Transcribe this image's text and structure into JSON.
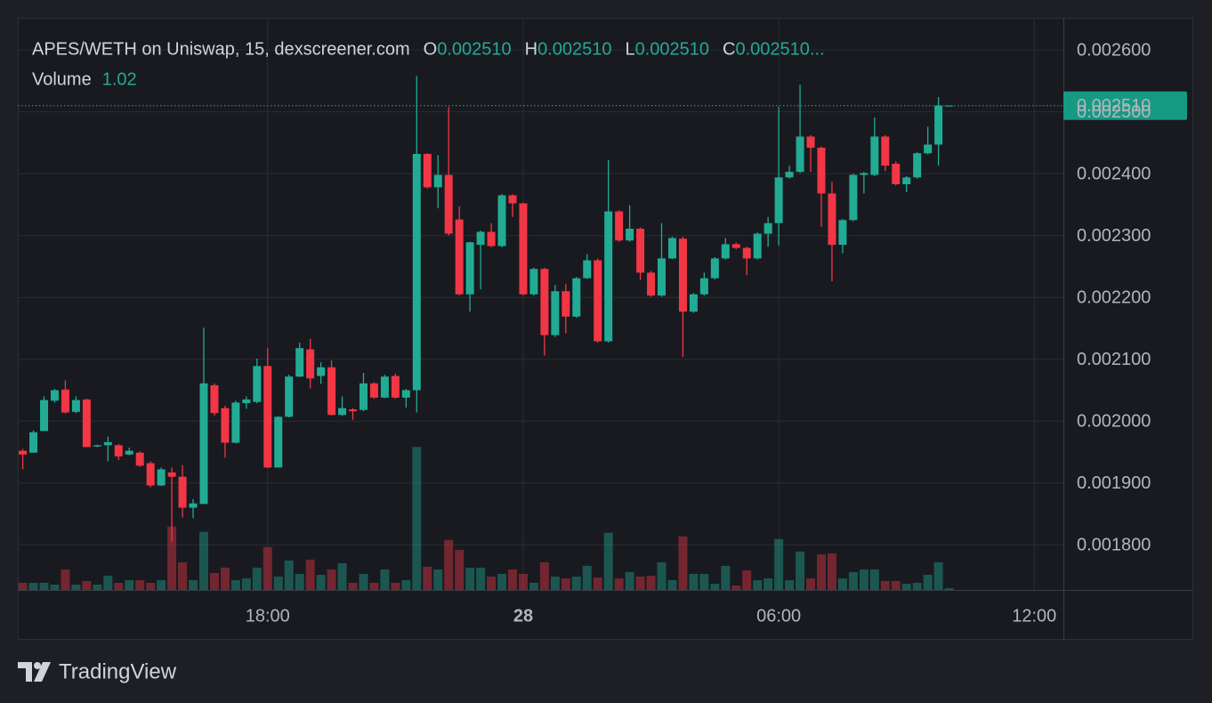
{
  "chart_data": {
    "type": "candlestick",
    "title": "APES/WETH on Uniswap, 15, dexscreener.com",
    "legend_values": [
      {
        "label": "O",
        "value": "0.002510"
      },
      {
        "label": "H",
        "value": "0.002510"
      },
      {
        "label": "L",
        "value": "0.002510"
      },
      {
        "label": "C",
        "value": "0.002510..."
      }
    ],
    "volume_label": "Volume",
    "watermark": "TradingView",
    "up_color": "#22ab94",
    "down_color": "#f23645",
    "grid": true,
    "last_price": {
      "value": 0.00251,
      "label": "0.002510"
    },
    "xlim": [
      "27 12:08",
      "28 12:41"
    ],
    "xticks": [
      {
        "value": "27 18:00",
        "label": "18:00"
      },
      {
        "value": "28 00:00",
        "label": "28"
      },
      {
        "value": "28 06:00",
        "label": "06:00"
      },
      {
        "value": "28 12:00",
        "label": "12:00"
      }
    ],
    "ylim": [
      0.001727,
      0.002652
    ],
    "yticks": [
      {
        "value": 0.0018,
        "label": "0.001800"
      },
      {
        "value": 0.0019,
        "label": "0.001900"
      },
      {
        "value": 0.002,
        "label": "0.002000"
      },
      {
        "value": 0.0021,
        "label": "0.002100"
      },
      {
        "value": 0.0022,
        "label": "0.002200"
      },
      {
        "value": 0.0023,
        "label": "0.002300"
      },
      {
        "value": 0.0024,
        "label": "0.002400"
      },
      {
        "value": 0.0025,
        "label": "0.002500"
      },
      {
        "value": 0.0026,
        "label": "0.002600"
      }
    ],
    "volume_lim": [
      0,
      320
    ],
    "x": [
      "27 12:15",
      "27 12:30",
      "27 12:45",
      "27 13:00",
      "27 13:15",
      "27 13:30",
      "27 13:45",
      "27 14:00",
      "27 14:15",
      "27 14:30",
      "27 14:45",
      "27 15:00",
      "27 15:15",
      "27 15:30",
      "27 15:45",
      "27 16:00",
      "27 16:15",
      "27 16:30",
      "27 16:45",
      "27 17:00",
      "27 17:15",
      "27 17:30",
      "27 17:45",
      "27 18:00",
      "27 18:15",
      "27 18:30",
      "27 18:45",
      "27 19:00",
      "27 19:15",
      "27 19:30",
      "27 19:45",
      "27 20:00",
      "27 20:15",
      "27 20:30",
      "27 20:45",
      "27 21:00",
      "27 21:15",
      "27 21:30",
      "27 21:45",
      "27 22:00",
      "27 22:15",
      "27 22:30",
      "27 22:45",
      "27 23:00",
      "27 23:15",
      "27 23:30",
      "27 23:45",
      "28 00:00",
      "28 00:15",
      "28 00:30",
      "28 00:45",
      "28 01:00",
      "28 01:15",
      "28 01:30",
      "28 01:45",
      "28 02:00",
      "28 02:15",
      "28 02:30",
      "28 02:45",
      "28 03:00",
      "28 03:15",
      "28 03:30",
      "28 03:45",
      "28 04:00",
      "28 04:15",
      "28 04:30",
      "28 04:45",
      "28 05:00",
      "28 05:15",
      "28 05:30",
      "28 05:45",
      "28 06:00",
      "28 06:15",
      "28 06:30",
      "28 06:45",
      "28 07:00",
      "28 07:15",
      "28 07:30",
      "28 07:45",
      "28 08:00",
      "28 08:15",
      "28 08:30",
      "28 08:45",
      "28 09:00",
      "28 09:15",
      "28 09:30",
      "28 09:45",
      "28 10:00"
    ],
    "open": [
      0.001952,
      0.001949,
      0.001984,
      0.002033,
      0.002051,
      0.002015,
      0.002035,
      0.001959,
      0.001961,
      0.001961,
      0.001946,
      0.001949,
      0.001932,
      0.001896,
      0.001917,
      0.00191,
      0.00186,
      0.001866,
      0.002058,
      0.002021,
      0.001965,
      0.002029,
      0.002031,
      0.002089,
      0.001925,
      0.002007,
      0.002072,
      0.002116,
      0.002073,
      0.002087,
      0.00201,
      0.002019,
      0.002018,
      0.002061,
      0.002038,
      0.002073,
      0.002038,
      0.00205,
      0.002432,
      0.002378,
      0.002398,
      0.002326,
      0.002205,
      0.002285,
      0.002306,
      0.002283,
      0.002365,
      0.002352,
      0.002205,
      0.002246,
      0.002139,
      0.00221,
      0.002169,
      0.002231,
      0.00226,
      0.002129,
      0.002339,
      0.002292,
      0.002311,
      0.00224,
      0.002203,
      0.002263,
      0.002295,
      0.002177,
      0.002205,
      0.002231,
      0.002263,
      0.002286,
      0.00228,
      0.002263,
      0.002303,
      0.00232,
      0.002394,
      0.002403,
      0.00246,
      0.002442,
      0.002368,
      0.002285,
      0.002325,
      0.002398,
      0.002398,
      0.00246,
      0.002416,
      0.002383,
      0.002394,
      0.002433,
      0.002447,
      0.00251
    ],
    "high": [
      0.001955,
      0.001985,
      0.00204,
      0.002052,
      0.002066,
      0.00204,
      0.002036,
      0.001962,
      0.001975,
      0.001963,
      0.001957,
      0.001951,
      0.001935,
      0.001925,
      0.001925,
      0.001929,
      0.001874,
      0.002151,
      0.002061,
      0.002025,
      0.002033,
      0.00204,
      0.002101,
      0.002118,
      0.002008,
      0.002075,
      0.002127,
      0.002133,
      0.002095,
      0.002098,
      0.00204,
      0.002021,
      0.002078,
      0.002063,
      0.002075,
      0.002077,
      0.002052,
      0.002558,
      0.002433,
      0.00243,
      0.002508,
      0.002347,
      0.00229,
      0.002308,
      0.00232,
      0.002367,
      0.002367,
      0.002353,
      0.002248,
      0.002248,
      0.00222,
      0.002222,
      0.002233,
      0.00227,
      0.002263,
      0.002422,
      0.002341,
      0.002349,
      0.002313,
      0.002243,
      0.00232,
      0.002298,
      0.002298,
      0.002207,
      0.00224,
      0.002265,
      0.002296,
      0.002289,
      0.002282,
      0.002305,
      0.00233,
      0.002508,
      0.002413,
      0.002544,
      0.002462,
      0.002444,
      0.002387,
      0.002327,
      0.0024,
      0.002403,
      0.002491,
      0.002462,
      0.00242,
      0.002396,
      0.002435,
      0.002476,
      0.002524,
      0.00251
    ],
    "low": [
      0.001922,
      0.001949,
      0.001984,
      0.00203,
      0.002012,
      0.002013,
      0.001958,
      0.001958,
      0.001935,
      0.001937,
      0.001945,
      0.001926,
      0.001893,
      0.001895,
      0.001805,
      0.001844,
      0.001843,
      0.001866,
      0.002009,
      0.001941,
      0.001964,
      0.00202,
      0.002029,
      0.001924,
      0.001925,
      0.002006,
      0.002071,
      0.002053,
      0.00206,
      0.002009,
      0.002008,
      0.002002,
      0.002016,
      0.002036,
      0.002037,
      0.002036,
      0.002022,
      0.002014,
      0.002376,
      0.002344,
      0.0023,
      0.002203,
      0.002177,
      0.002213,
      0.002281,
      0.002281,
      0.00233,
      0.002203,
      0.002203,
      0.002106,
      0.002136,
      0.002142,
      0.002167,
      0.00223,
      0.002127,
      0.002127,
      0.00229,
      0.00229,
      0.002228,
      0.002201,
      0.002201,
      0.002262,
      0.002104,
      0.002175,
      0.002203,
      0.002229,
      0.002261,
      0.002278,
      0.002236,
      0.002261,
      0.002282,
      0.002284,
      0.002392,
      0.002401,
      0.002403,
      0.002314,
      0.002226,
      0.002271,
      0.002323,
      0.002368,
      0.002396,
      0.002404,
      0.002381,
      0.00237,
      0.002392,
      0.002431,
      0.002413,
      0.00251
    ],
    "close": [
      0.001946,
      0.001982,
      0.002034,
      0.00205,
      0.002014,
      0.002034,
      0.001958,
      0.001961,
      0.001966,
      0.001943,
      0.001952,
      0.001928,
      0.001896,
      0.001922,
      0.00191,
      0.00186,
      0.001867,
      0.002061,
      0.002013,
      0.001965,
      0.00203,
      0.002035,
      0.002089,
      0.001925,
      0.002007,
      0.002072,
      0.002118,
      0.002069,
      0.002087,
      0.00201,
      0.002021,
      0.002016,
      0.002061,
      0.002038,
      0.002072,
      0.002038,
      0.00205,
      0.002432,
      0.002378,
      0.002398,
      0.002303,
      0.002205,
      0.002289,
      0.002306,
      0.002283,
      0.002365,
      0.002352,
      0.002205,
      0.002246,
      0.002139,
      0.00221,
      0.002169,
      0.002231,
      0.00226,
      0.002129,
      0.002339,
      0.002292,
      0.002311,
      0.00224,
      0.002203,
      0.002263,
      0.002296,
      0.002177,
      0.002205,
      0.002231,
      0.002263,
      0.002286,
      0.00228,
      0.002263,
      0.002303,
      0.00232,
      0.002394,
      0.002403,
      0.00246,
      0.002442,
      0.002368,
      0.002285,
      0.002325,
      0.002398,
      0.002401,
      0.00246,
      0.002413,
      0.002383,
      0.002394,
      0.002433,
      0.002447,
      0.00251,
      0.00251
    ],
    "volume": [
      4,
      4,
      4,
      3,
      11.5,
      3,
      5,
      3,
      8,
      4,
      5.5,
      5.5,
      4,
      5.5,
      35.5,
      15.5,
      5.5,
      32.5,
      9.5,
      12.5,
      5.5,
      6.5,
      12.5,
      24,
      7.5,
      16.5,
      9,
      17,
      8.5,
      11.5,
      15,
      4,
      9,
      4,
      11.5,
      4,
      5.5,
      80,
      13,
      11.5,
      28,
      22.5,
      12.5,
      12.5,
      7.5,
      9,
      11.5,
      9,
      4,
      15.5,
      7.5,
      6.5,
      7.5,
      13.5,
      7,
      32,
      6.5,
      10,
      7.5,
      8,
      15.5,
      5.5,
      30,
      9,
      9,
      3.5,
      13.5,
      2.5,
      11,
      5.5,
      6.5,
      28.5,
      5.5,
      21.5,
      6.5,
      20,
      20.5,
      6.5,
      10,
      11.5,
      11.5,
      5,
      5,
      3.5,
      4,
      8.5,
      15.5,
      1.02
    ]
  }
}
